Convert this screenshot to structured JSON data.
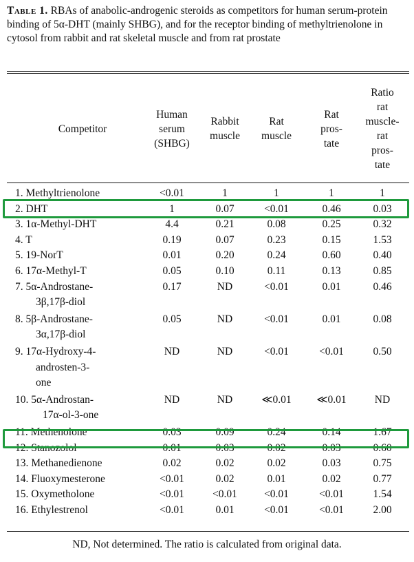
{
  "caption": {
    "lead": "Table 1.",
    "text": "RBAs of anabolic-androgenic steroids as competitors for human serum-protein binding of 5α-DHT (mainly SHBG), and for the receptor binding of methyltrienolone in cytosol from rabbit and rat skeletal muscle and from rat prostate"
  },
  "headers": [
    [
      "Competitor"
    ],
    [
      "Human",
      "serum",
      "(SHBG)"
    ],
    [
      "Rabbit",
      "muscle"
    ],
    [
      "Rat",
      "muscle"
    ],
    [
      "Rat",
      "pros-",
      "tate"
    ],
    [
      "Ratio",
      "rat",
      "muscle-",
      "rat",
      "pros-",
      "tate"
    ]
  ],
  "rows": [
    {
      "name": [
        "1. Methyltrienolone"
      ],
      "vals": [
        "<0.01",
        "1",
        "1",
        "1",
        "1"
      ]
    },
    {
      "name": [
        "2. DHT"
      ],
      "vals": [
        "1",
        "0.07",
        "<0.01",
        "0.46",
        "0.03"
      ]
    },
    {
      "name": [
        "3. 1α-Methyl-DHT"
      ],
      "vals": [
        "4.4",
        "0.21",
        "0.08",
        "0.25",
        "0.32"
      ]
    },
    {
      "name": [
        "4. T"
      ],
      "vals": [
        "0.19",
        "0.07",
        "0.23",
        "0.15",
        "1.53"
      ]
    },
    {
      "name": [
        "5. 19-NorT"
      ],
      "vals": [
        "0.01",
        "0.20",
        "0.24",
        "0.60",
        "0.40"
      ]
    },
    {
      "name": [
        "6. 17α-Methyl-T"
      ],
      "vals": [
        "0.05",
        "0.10",
        "0.11",
        "0.13",
        "0.85"
      ]
    },
    {
      "name": [
        "7. 5α-Androstane-",
        "3β,17β-diol"
      ],
      "vals": [
        "0.17",
        "ND",
        "<0.01",
        "0.01",
        "0.46"
      ]
    },
    {
      "name": [
        "8. 5β-Androstane-",
        "3α,17β-diol"
      ],
      "vals": [
        "0.05",
        "ND",
        "<0.01",
        "0.01",
        "0.08"
      ]
    },
    {
      "name": [
        "9. 17α-Hydroxy-4-",
        "androsten-3-",
        "one"
      ],
      "vals": [
        "ND",
        "ND",
        "<0.01",
        "<0.01",
        "0.50"
      ]
    },
    {
      "name": [
        "10. 5α-Androstan-",
        "17α-ol-3-one"
      ],
      "vals": [
        "ND",
        "ND",
        "≪0.01",
        "≪0.01",
        "ND"
      ]
    },
    {
      "name": [
        "11. Methenolone"
      ],
      "vals": [
        "0.03",
        "0.09",
        "0.24",
        "0.14",
        "1.67"
      ]
    },
    {
      "name": [
        "12. Stanozolol"
      ],
      "vals": [
        "0.01",
        "0.03",
        "0.02",
        "0.03",
        "0.60"
      ]
    },
    {
      "name": [
        "13. Methanedienone"
      ],
      "vals": [
        "0.02",
        "0.02",
        "0.02",
        "0.03",
        "0.75"
      ]
    },
    {
      "name": [
        "14. Fluoxymesterone"
      ],
      "vals": [
        "<0.01",
        "0.02",
        "0.01",
        "0.02",
        "0.77"
      ]
    },
    {
      "name": [
        "15. Oxymetholone"
      ],
      "vals": [
        "<0.01",
        "<0.01",
        "<0.01",
        "<0.01",
        "1.54"
      ]
    },
    {
      "name": [
        "16. Ethylestrenol"
      ],
      "vals": [
        "<0.01",
        "0.01",
        "<0.01",
        "<0.01",
        "2.00"
      ]
    }
  ],
  "highlighted_rows": [
    "2. DHT",
    "11. Methenolone"
  ],
  "highlight_color": "#1e9a3c",
  "footnote": "ND, Not determined. The ratio is calculated from original data."
}
